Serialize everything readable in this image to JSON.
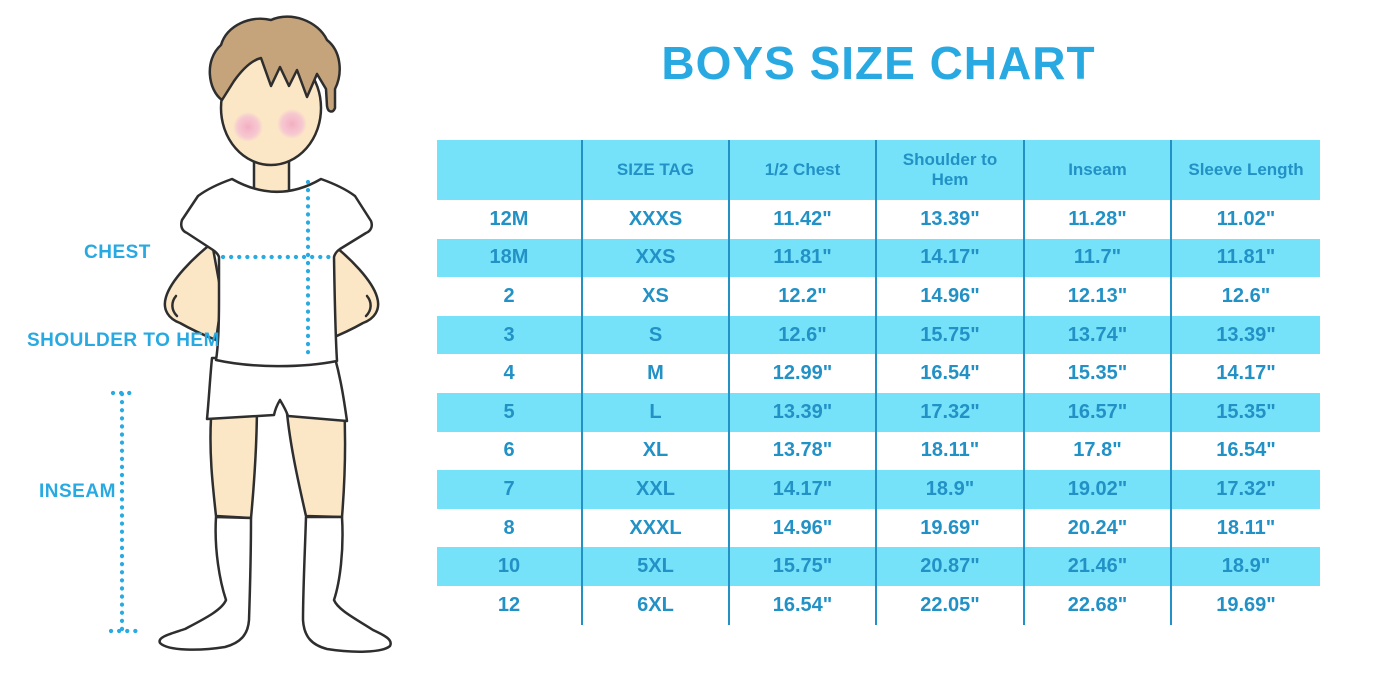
{
  "title": "BOYS SIZE CHART",
  "figure": {
    "description": "cartoon boy in white t-shirt, shorts and knee socks with measurement guide lines",
    "labels": {
      "chest": "CHEST",
      "shoulder_to_hem": "SHOULDER TO HEM",
      "inseam": "INSEAM"
    }
  },
  "colors": {
    "title_and_labels": "#29A9E1",
    "table_text": "#2191C6",
    "band_cyan": "#76E2FA",
    "dotted_line": "#29ABE2",
    "skin": "#FBE7C6",
    "hair": "#C5A47C",
    "cheek": "#F2AEC2",
    "outline": "#2E2E2E"
  },
  "chart_data": {
    "type": "table",
    "title": "BOYS SIZE CHART",
    "columns": [
      "",
      "SIZE TAG",
      "1/2 Chest",
      "Shoulder to Hem",
      "Inseam",
      "Sleeve Length"
    ],
    "rows": [
      [
        "12M",
        "XXXS",
        "11.42\"",
        "13.39\"",
        "11.28\"",
        "11.02\""
      ],
      [
        "18M",
        "XXS",
        "11.81\"",
        "14.17\"",
        "11.7\"",
        "11.81\""
      ],
      [
        "2",
        "XS",
        "12.2\"",
        "14.96\"",
        "12.13\"",
        "12.6\""
      ],
      [
        "3",
        "S",
        "12.6\"",
        "15.75\"",
        "13.74\"",
        "13.39\""
      ],
      [
        "4",
        "M",
        "12.99\"",
        "16.54\"",
        "15.35\"",
        "14.17\""
      ],
      [
        "5",
        "L",
        "13.39\"",
        "17.32\"",
        "16.57\"",
        "15.35\""
      ],
      [
        "6",
        "XL",
        "13.78\"",
        "18.11\"",
        "17.8\"",
        "16.54\""
      ],
      [
        "7",
        "XXL",
        "14.17\"",
        "18.9\"",
        "19.02\"",
        "17.32\""
      ],
      [
        "8",
        "XXXL",
        "14.96\"",
        "19.69\"",
        "20.24\"",
        "18.11\""
      ],
      [
        "10",
        "5XL",
        "15.75\"",
        "20.87\"",
        "21.46\"",
        "18.9\""
      ],
      [
        "12",
        "6XL",
        "16.54\"",
        "22.05\"",
        "22.68\"",
        "19.69\""
      ]
    ],
    "layout": {
      "row_striping": "white / cyan alternating, header cyan",
      "grid": "vertical column dividers only"
    }
  }
}
